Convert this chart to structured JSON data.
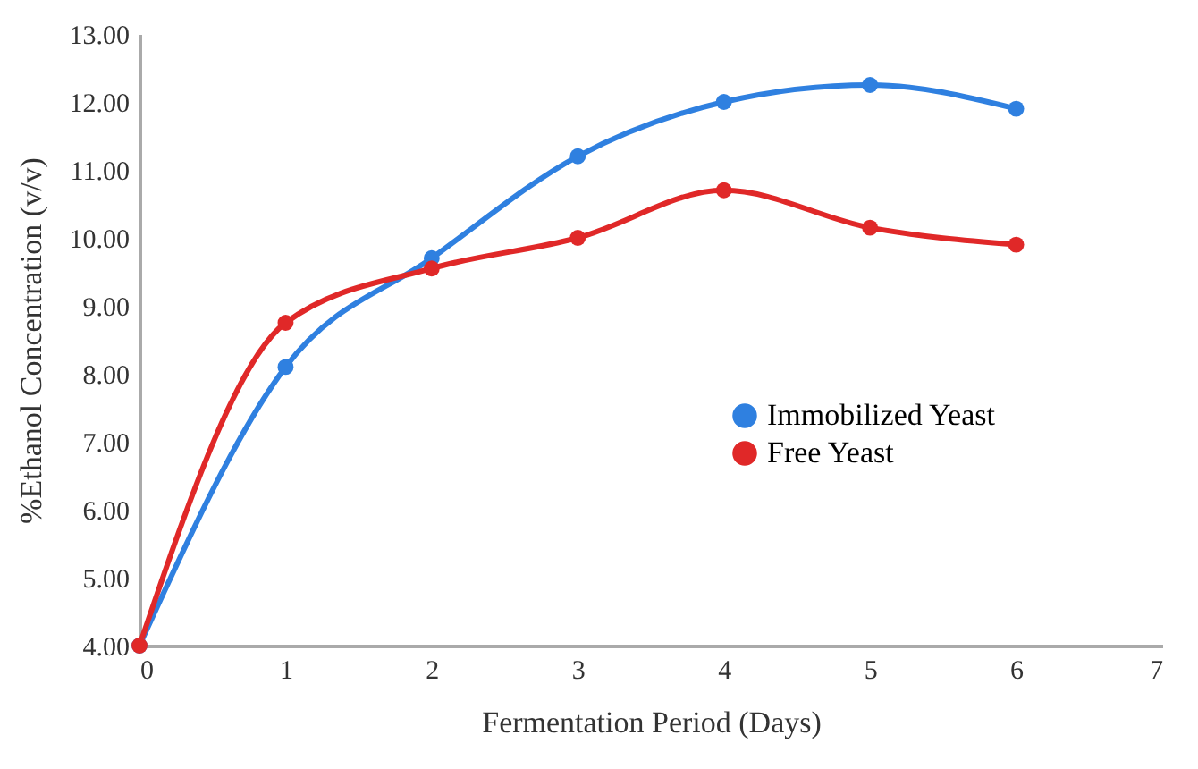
{
  "chart_data": {
    "type": "line",
    "xlabel": "Fermentation Period (Days)",
    "ylabel": "%Ethanol Concentration (v/v)",
    "x": [
      0,
      1,
      2,
      3,
      4,
      5,
      6
    ],
    "series": [
      {
        "name": "Immobilized Yeast",
        "color": "#2f80e0",
        "values": [
          4.0,
          8.1,
          9.7,
          11.2,
          12.0,
          12.25,
          11.9
        ]
      },
      {
        "name": "Free Yeast",
        "color": "#e02828",
        "values": [
          4.0,
          8.75,
          9.55,
          10.0,
          10.7,
          10.15,
          9.9
        ]
      }
    ],
    "xlim": [
      0,
      7
    ],
    "xticks": [
      0,
      1,
      2,
      3,
      4,
      5,
      6,
      7
    ],
    "ylim": [
      4,
      13
    ],
    "yticks": [
      {
        "value": 4,
        "label": "4.00"
      },
      {
        "value": 5,
        "label": "5.00"
      },
      {
        "value": 6,
        "label": "6.00"
      },
      {
        "value": 7,
        "label": "7.00"
      },
      {
        "value": 8,
        "label": "8.00"
      },
      {
        "value": 9,
        "label": "9.00"
      },
      {
        "value": 10,
        "label": "10.00"
      },
      {
        "value": 11,
        "label": "11.00"
      },
      {
        "value": 12,
        "label": "12.00"
      },
      {
        "value": 13,
        "label": "13.00"
      }
    ],
    "grid": false,
    "legend": "right",
    "marker": "circle",
    "line_style": "solid"
  }
}
